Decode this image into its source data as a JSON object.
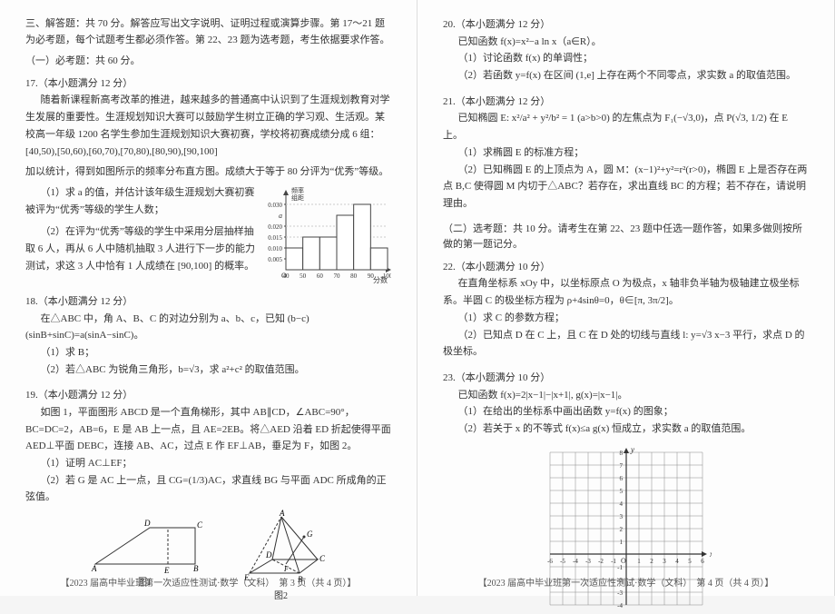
{
  "left": {
    "section3": "三、解答题：共 70 分。解答应写出文字说明、证明过程或演算步骤。第 17～21 题为必考题，每个试题考生都必须作答。第 22、23 题为选考题，考生依据要求作答。",
    "sub1": "（一）必考题：共 60 分。",
    "p17": {
      "head": "17.（本小题满分 12 分）",
      "para1": "随着新课程新高考改革的推进，越来越多的普通高中认识到了生涯规划教育对学生发展的重要性。生涯规划知识大赛可以鼓励学生树立正确的学习观、生活观。某校高一年级 1200 名学生参加生涯规划知识大赛初赛，学校将初赛成绩分成 6 组：[40,50),[50,60),[60,70),[70,80),[80,90),[90,100]",
      "para2": "加以统计，得到如图所示的频率分布直方图。成绩大于等于 80 分评为“优秀”等级。",
      "q1": "（1）求 a 的值，并估计该年级生涯规划大赛初赛被评为“优秀”等级的学生人数；",
      "q2": "（2）在评为“优秀”等级的学生中采用分层抽样抽取 6 人，再从 6 人中随机抽取 3 人进行下一步的能力测试，求这 3 人中恰有 1 人成绩在 [90,100] 的概率。",
      "chart": {
        "ylabel": "频率\n组距",
        "xlabel": "分数",
        "xticks": [
          "40",
          "50",
          "60",
          "70",
          "80",
          "90",
          "100"
        ],
        "yticks": [
          "0.005",
          "0.010",
          "0.015",
          "0.020",
          "0.030"
        ],
        "bars": [
          0.01,
          0.015,
          0.015,
          0.025,
          0.03,
          0.01
        ],
        "a_label": "a",
        "bar_color": "#ffffff",
        "border_color": "#444444",
        "axis_color": "#444444"
      }
    },
    "p18": {
      "head": "18.（本小题满分 12 分）",
      "given": "在△ABC 中，角 A、B、C 的对边分别为 a、b、c，已知 (b−c)(sinB+sinC)=a(sinA−sinC)。",
      "q1": "（1）求 B；",
      "q2": "（2）若△ABC 为锐角三角形，b=√3，求 a²+c² 的取值范围。"
    },
    "p19": {
      "head": "19.（本小题满分 12 分）",
      "para": "如图 1，平面图形 ABCD 是一个直角梯形，其中 AB∥CD，∠ABC=90°，BC=DC=2，AB=6，E 是 AB 上一点，且 AE=2EB。将△AED 沿着 ED 折起使得平面 AED⊥平面 DEBC，连接 AB、AC，过点 E 作 EF⊥AB，垂足为 F，如图 2。",
      "q1": "（1）证明 AC⊥EF；",
      "q2": "（2）若 G 是 AC 上一点，且 CG=(1/3)AC，求直线 BG 与平面 ADC 所成角的正弦值。",
      "fig1_label": "图1",
      "fig2_label": "图2",
      "fig_color": "#333333"
    },
    "footer": "【2023 届高中毕业班第一次适应性测试·数学（文科）　第 3 页（共 4 页）】"
  },
  "right": {
    "p20": {
      "head": "20.（本小题满分 12 分）",
      "given": "已知函数 f(x)=x²−a ln x（a∈R）。",
      "q1": "（1）讨论函数 f(x) 的单调性；",
      "q2": "（2）若函数 y=f(x) 在区间 (1,e] 上存在两个不同零点，求实数 a 的取值范围。"
    },
    "p21": {
      "head": "21.（本小题满分 12 分）",
      "given": "已知椭圆 E: x²/a² + y²/b² = 1 (a>b>0) 的左焦点为 F₁(−√3,0)，点 P(√3, 1/2) 在 E 上。",
      "q1": "（1）求椭圆 E 的标准方程；",
      "q2": "（2）已知椭圆 E 的上顶点为 A，圆 M：(x−1)²+y²=r²(r>0)，椭圆 E 上是否存在两点 B,C 使得圆 M 内切于△ABC？若存在，求出直线 BC 的方程；若不存在，请说明理由。"
    },
    "sub2": "（二）选考题：共 10 分。请考生在第 22、23 题中任选一题作答，如果多做则按所做的第一题记分。",
    "p22": {
      "head": "22.（本小题满分 10 分）",
      "para": "在直角坐标系 xOy 中，以坐标原点 O 为极点，x 轴非负半轴为极轴建立极坐标系。半圆 C 的极坐标方程为 ρ+4sinθ=0，θ∈[π, 3π/2]。",
      "q1": "（1）求 C 的参数方程；",
      "q2": "（2）已知点 D 在 C 上，且 C 在 D 处的切线与直线 l: y=√3 x−3 平行，求点 D 的极坐标。"
    },
    "p23": {
      "head": "23.（本小题满分 10 分）",
      "given": "已知函数 f(x)=2|x−1|−|x+1|, g(x)=|x−1|。",
      "q1": "（1）在给出的坐标系中画出函数 y=f(x) 的图象；",
      "q2": "（2）若关于 x 的不等式 f(x)≤a g(x) 恒成立，求实数 a 的取值范围。",
      "grid": {
        "xmin": -6,
        "xmax": 6,
        "ymin": -4,
        "ymax": 8,
        "grid_color": "#888888",
        "axis_color": "#333333",
        "xlabel": "x",
        "ylabel": "y",
        "origin": "O"
      }
    },
    "footer": "【2023 届高中毕业班第一次适应性测试·数学（文科）　第 4 页（共 4 页）】"
  }
}
